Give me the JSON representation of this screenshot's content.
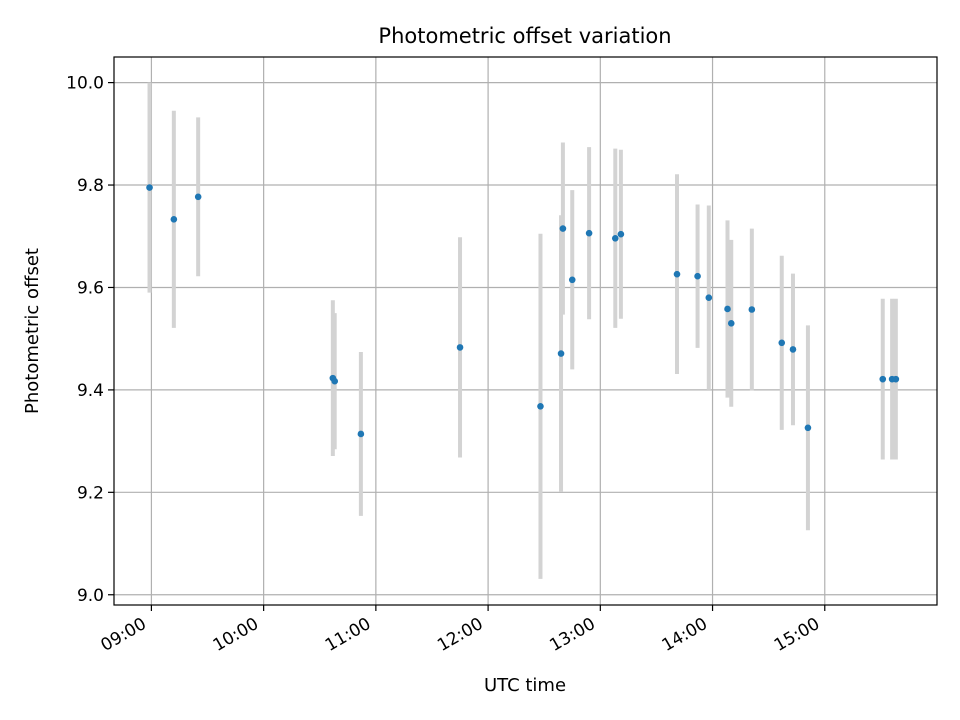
{
  "chart_data": {
    "type": "scatter",
    "title": "Photometric offset variation",
    "xlabel": "UTC time",
    "ylabel": "Photometric offset",
    "xlim": [
      "08:40",
      "16:00"
    ],
    "ylim": [
      8.98,
      10.05
    ],
    "x_ticks": [
      "09:00",
      "10:00",
      "11:00",
      "12:00",
      "13:00",
      "14:00",
      "15:00"
    ],
    "y_ticks": [
      "9.0",
      "9.2",
      "9.4",
      "9.6",
      "9.8",
      "10.0"
    ],
    "grid": true,
    "colors": {
      "point": "#1f77b4",
      "errorbar": "#d3d3d3",
      "grid": "#b0b0b0"
    },
    "series": [
      {
        "points": [
          {
            "t": "08:59",
            "y": 9.795,
            "err": 0.205
          },
          {
            "t": "09:12",
            "y": 9.733,
            "err": 0.212
          },
          {
            "t": "09:25",
            "y": 9.777,
            "err": 0.155
          },
          {
            "t": "10:37",
            "y": 9.423,
            "err": 0.152
          },
          {
            "t": "10:38",
            "y": 9.417,
            "err": 0.133
          },
          {
            "t": "10:52",
            "y": 9.314,
            "err": 0.16
          },
          {
            "t": "11:45",
            "y": 9.483,
            "err": 0.215
          },
          {
            "t": "12:28",
            "y": 9.368,
            "err": 0.337
          },
          {
            "t": "12:39",
            "y": 9.471,
            "err": 0.27
          },
          {
            "t": "12:40",
            "y": 9.715,
            "err": 0.168
          },
          {
            "t": "12:45",
            "y": 9.615,
            "err": 0.175
          },
          {
            "t": "12:54",
            "y": 9.706,
            "err": 0.168
          },
          {
            "t": "13:08",
            "y": 9.696,
            "err": 0.175
          },
          {
            "t": "13:11",
            "y": 9.704,
            "err": 0.165
          },
          {
            "t": "13:41",
            "y": 9.626,
            "err": 0.195
          },
          {
            "t": "13:52",
            "y": 9.622,
            "err": 0.14
          },
          {
            "t": "13:58",
            "y": 9.58,
            "err": 0.18
          },
          {
            "t": "14:08",
            "y": 9.558,
            "err": 0.173
          },
          {
            "t": "14:10",
            "y": 9.53,
            "err": 0.163
          },
          {
            "t": "14:21",
            "y": 9.557,
            "err": 0.158
          },
          {
            "t": "14:37",
            "y": 9.492,
            "err": 0.17
          },
          {
            "t": "14:43",
            "y": 9.479,
            "err": 0.148
          },
          {
            "t": "14:51",
            "y": 9.326,
            "err": 0.2
          },
          {
            "t": "15:31",
            "y": 9.421,
            "err": 0.157
          },
          {
            "t": "15:36",
            "y": 9.421,
            "err": 0.157
          },
          {
            "t": "15:38",
            "y": 9.421,
            "err": 0.157
          }
        ]
      }
    ]
  }
}
